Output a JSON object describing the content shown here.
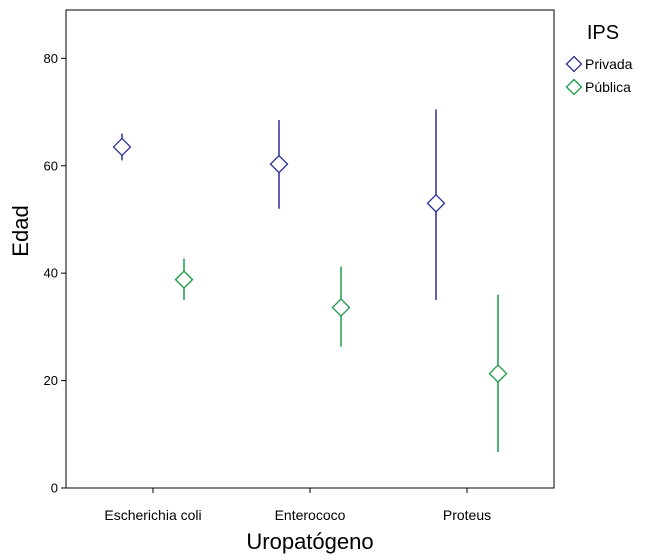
{
  "chart_data": {
    "type": "scatter",
    "subtype": "error-bar",
    "xlabel": "Uropatógeno",
    "ylabel": "Edad",
    "categories": [
      "Escherichia coli",
      "Enterococo",
      "Proteus"
    ],
    "ylim": [
      0,
      89
    ],
    "yticks": [
      0,
      20,
      40,
      60,
      80
    ],
    "grid": false,
    "legend": {
      "title": "IPS",
      "placement": "top-right"
    },
    "series": [
      {
        "name": "Privada",
        "color": "#2b3190",
        "marker": "diamond",
        "values": [
          63.5,
          60.3,
          53.0
        ],
        "lower": [
          61.0,
          52.0,
          35.0
        ],
        "upper": [
          66.0,
          68.5,
          70.5
        ]
      },
      {
        "name": "Pública",
        "color": "#1b9a48",
        "marker": "diamond",
        "values": [
          38.8,
          33.6,
          21.3
        ],
        "lower": [
          35.0,
          26.3,
          6.7
        ],
        "upper": [
          42.7,
          41.2,
          36.0
        ]
      }
    ]
  }
}
